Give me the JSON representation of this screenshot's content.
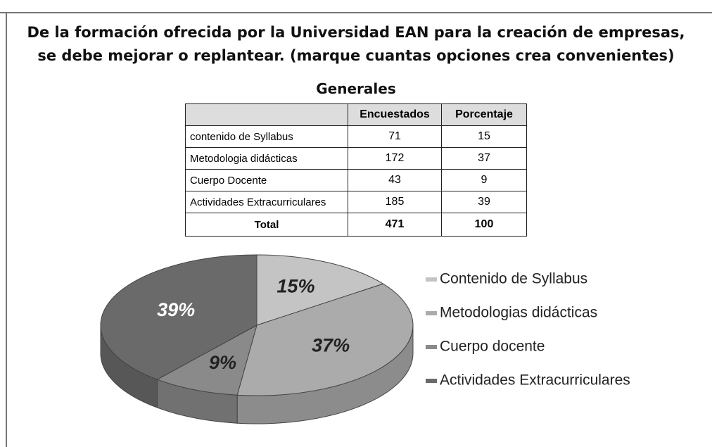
{
  "title": [
    "De la formación ofrecida por la Universidad EAN para la creación de empresas,",
    "se debe mejorar o replantear. (marque cuantas opciones crea convenientes)"
  ],
  "table": {
    "title": "Generales",
    "header": [
      "Encuestados",
      "Porcentaje"
    ],
    "rows": [
      [
        "contenido de Syllabus",
        71,
        15
      ],
      [
        "Metodologia didácticas",
        172,
        37
      ],
      [
        "Cuerpo Docente",
        43,
        9
      ],
      [
        "Actividades Extracurriculares",
        185,
        39
      ]
    ],
    "total": [
      "Total",
      471,
      100
    ]
  },
  "chart_data": {
    "type": "pie",
    "categories": [
      "Contenido de Syllabus",
      "Metodologias didácticas",
      "Cuerpo docente",
      "Actividades Extracurriculares"
    ],
    "values": [
      15,
      37,
      9,
      39
    ],
    "value_labels": [
      "15%",
      "37%",
      "9%",
      "39%"
    ],
    "colors": [
      "#c4c4c4",
      "#ababab",
      "#8a8a8a",
      "#6a6a6a"
    ]
  }
}
